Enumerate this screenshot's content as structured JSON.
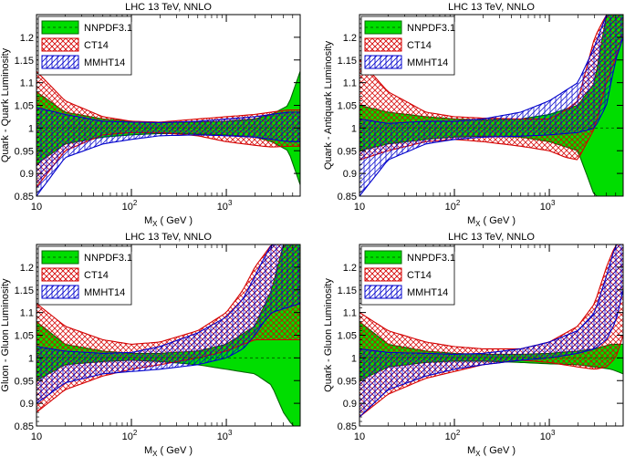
{
  "chart_data": [
    {
      "type": "area",
      "title": "LHC 13 TeV, NNLO",
      "ylabel": "Quark - Quark Luminosity",
      "xlabel_main": "M",
      "xlabel_sub": "X",
      "xlabel_unit": " ( GeV )",
      "xscale": "log",
      "xlim": [
        10,
        6000
      ],
      "ylim": [
        0.85,
        1.25
      ],
      "yticks": [
        0.85,
        0.9,
        0.95,
        1,
        1.05,
        1.1,
        1.15,
        1.2
      ],
      "ytick_labels": [
        "0.85",
        "0.9",
        "0.95",
        "1",
        "1.05",
        "1.1",
        "1.15",
        "1.2"
      ],
      "xticks": [
        {
          "base": "10",
          "exp": ""
        },
        {
          "base": "10",
          "exp": "2"
        },
        {
          "base": "10",
          "exp": "3"
        }
      ],
      "legend": [
        "NNPDF3.1",
        "CT14",
        "MMHT14"
      ],
      "legend_position": "top-left",
      "series": [
        {
          "name": "NNPDF3.1",
          "x": [
            10,
            20,
            50,
            100,
            200,
            500,
            1000,
            2000,
            3000,
            4500,
            6000
          ],
          "central": [
            1,
            1,
            1,
            1,
            1,
            1,
            1,
            1,
            1,
            1,
            1
          ],
          "upper": [
            1.08,
            1.035,
            1.02,
            1.015,
            1.012,
            1.013,
            1.015,
            1.02,
            1.03,
            1.05,
            1.125
          ],
          "lower": [
            0.92,
            0.965,
            0.98,
            0.985,
            0.988,
            0.987,
            0.985,
            0.98,
            0.97,
            0.95,
            0.875
          ]
        },
        {
          "name": "CT14",
          "x": [
            10,
            20,
            50,
            100,
            200,
            500,
            1000,
            2000,
            3000,
            4500,
            6000
          ],
          "upper": [
            1.125,
            1.06,
            1.025,
            1.015,
            1.013,
            1.02,
            1.025,
            1.03,
            1.035,
            1.04,
            1.04
          ],
          "lower": [
            0.87,
            0.95,
            0.985,
            0.99,
            0.99,
            0.983,
            0.97,
            0.962,
            0.958,
            0.96,
            0.96
          ]
        },
        {
          "name": "MMHT14",
          "x": [
            10,
            20,
            50,
            100,
            200,
            500,
            1000,
            2000,
            3000,
            4500,
            6000
          ],
          "upper": [
            1.045,
            1.03,
            1.015,
            1.013,
            1.012,
            1.015,
            1.02,
            1.025,
            1.03,
            1.035,
            1.035
          ],
          "lower": [
            0.85,
            0.935,
            0.965,
            0.975,
            0.983,
            0.985,
            0.983,
            0.98,
            0.975,
            0.97,
            0.97
          ]
        }
      ]
    },
    {
      "type": "area",
      "title": "LHC 13 TeV, NNLO",
      "ylabel": "Quark - Antiquark Luminosity",
      "xlabel_main": "M",
      "xlabel_sub": "X",
      "xlabel_unit": " ( GeV )",
      "xscale": "log",
      "xlim": [
        10,
        6000
      ],
      "ylim": [
        0.85,
        1.25
      ],
      "yticks": [
        0.85,
        0.9,
        0.95,
        1,
        1.05,
        1.1,
        1.15,
        1.2
      ],
      "ytick_labels": [
        "0.85",
        "0.9",
        "0.95",
        "1",
        "1.05",
        "1.1",
        "1.15",
        "1.2"
      ],
      "xticks": [
        {
          "base": "10",
          "exp": ""
        },
        {
          "base": "10",
          "exp": "2"
        },
        {
          "base": "10",
          "exp": "3"
        }
      ],
      "legend": [
        "NNPDF3.1",
        "CT14",
        "MMHT14"
      ],
      "legend_position": "top-left",
      "series": [
        {
          "name": "NNPDF3.1",
          "x": [
            10,
            20,
            50,
            100,
            200,
            500,
            1000,
            2000,
            3000,
            4000,
            5000,
            6000
          ],
          "central": [
            1,
            1,
            1,
            1,
            1,
            1,
            1,
            1,
            1,
            1,
            1,
            1
          ],
          "upper": [
            1.05,
            1.035,
            1.025,
            1.02,
            1.018,
            1.02,
            1.03,
            1.05,
            1.1,
            1.25,
            1.25,
            1.25
          ],
          "lower": [
            0.95,
            0.965,
            0.975,
            0.98,
            0.982,
            0.98,
            0.97,
            0.95,
            0.85,
            0.85,
            0.85,
            0.85
          ]
        },
        {
          "name": "CT14",
          "x": [
            10,
            20,
            50,
            100,
            200,
            500,
            1000,
            1500,
            2000,
            3000,
            4000,
            6000
          ],
          "upper": [
            1.15,
            1.08,
            1.035,
            1.025,
            1.022,
            1.02,
            1.02,
            1.04,
            1.06,
            1.2,
            1.25,
            1.25
          ],
          "lower": [
            0.93,
            0.95,
            0.97,
            0.975,
            0.97,
            0.96,
            0.95,
            0.935,
            0.93,
            1.0,
            1.1,
            1.2
          ]
        },
        {
          "name": "MMHT14",
          "x": [
            10,
            20,
            50,
            100,
            200,
            500,
            1000,
            2000,
            3000,
            4000,
            5000,
            6000
          ],
          "upper": [
            1.02,
            1.01,
            1.015,
            1.015,
            1.02,
            1.035,
            1.06,
            1.1,
            1.18,
            1.25,
            1.25,
            1.25
          ],
          "lower": [
            0.85,
            0.93,
            0.965,
            0.975,
            0.98,
            0.982,
            0.985,
            0.99,
            1.0,
            1.05,
            1.15,
            1.2
          ]
        }
      ]
    },
    {
      "type": "area",
      "title": "LHC 13 TeV, NNLO",
      "ylabel": "Gluon - Gluon Luminosity",
      "xlabel_main": "M",
      "xlabel_sub": "X",
      "xlabel_unit": " ( GeV )",
      "xscale": "log",
      "xlim": [
        10,
        6000
      ],
      "ylim": [
        0.85,
        1.25
      ],
      "yticks": [
        0.85,
        0.9,
        0.95,
        1,
        1.05,
        1.1,
        1.15,
        1.2
      ],
      "ytick_labels": [
        "0.85",
        "0.9",
        "0.95",
        "1",
        "1.05",
        "1.1",
        "1.15",
        "1.2"
      ],
      "xticks": [
        {
          "base": "10",
          "exp": ""
        },
        {
          "base": "10",
          "exp": "2"
        },
        {
          "base": "10",
          "exp": "3"
        }
      ],
      "legend": [
        "NNPDF3.1",
        "CT14",
        "MMHT14"
      ],
      "legend_position": "top-left",
      "series": [
        {
          "name": "NNPDF3.1",
          "x": [
            10,
            20,
            50,
            100,
            200,
            500,
            1000,
            2000,
            3000,
            4000,
            5000,
            6000
          ],
          "central": [
            1,
            1,
            1,
            1,
            1,
            1,
            1,
            1,
            1,
            1,
            1,
            1
          ],
          "upper": [
            1.08,
            1.03,
            1.015,
            1.01,
            1.01,
            1.015,
            1.03,
            1.07,
            1.15,
            1.25,
            1.25,
            1.25
          ],
          "lower": [
            0.95,
            0.985,
            0.992,
            0.995,
            0.992,
            0.985,
            0.975,
            0.965,
            0.94,
            0.88,
            0.85,
            0.85
          ]
        },
        {
          "name": "CT14",
          "x": [
            10,
            20,
            50,
            100,
            200,
            500,
            1000,
            1500,
            2000,
            3000,
            4000,
            6000
          ],
          "upper": [
            1.12,
            1.07,
            1.04,
            1.03,
            1.035,
            1.06,
            1.1,
            1.15,
            1.2,
            1.25,
            1.25,
            1.25
          ],
          "lower": [
            0.88,
            0.93,
            0.96,
            0.975,
            0.985,
            1.0,
            1.015,
            1.03,
            1.04,
            1.04,
            1.04,
            1.04
          ]
        },
        {
          "name": "MMHT14",
          "x": [
            10,
            20,
            50,
            100,
            200,
            500,
            1000,
            1500,
            2000,
            2500,
            3000,
            6000
          ],
          "upper": [
            1.025,
            1.015,
            1.01,
            1.012,
            1.025,
            1.055,
            1.09,
            1.13,
            1.18,
            1.22,
            1.25,
            1.25
          ],
          "lower": [
            0.9,
            0.945,
            0.965,
            0.97,
            0.975,
            0.985,
            1.0,
            1.02,
            1.05,
            1.08,
            1.1,
            1.12
          ]
        }
      ]
    },
    {
      "type": "area",
      "title": "LHC 13 TeV, NNLO",
      "ylabel": "Quark - Gluon Luminosity",
      "xlabel_main": "M",
      "xlabel_sub": "X",
      "xlabel_unit": " ( GeV )",
      "xscale": "log",
      "xlim": [
        10,
        6000
      ],
      "ylim": [
        0.85,
        1.25
      ],
      "yticks": [
        0.85,
        0.9,
        0.95,
        1,
        1.05,
        1.1,
        1.15,
        1.2
      ],
      "ytick_labels": [
        "0.85",
        "0.9",
        "0.95",
        "1",
        "1.05",
        "1.1",
        "1.15",
        "1.2"
      ],
      "xticks": [
        {
          "base": "10",
          "exp": ""
        },
        {
          "base": "10",
          "exp": "2"
        },
        {
          "base": "10",
          "exp": "3"
        }
      ],
      "legend": [
        "NNPDF3.1",
        "CT14",
        "MMHT14"
      ],
      "legend_position": "top-left",
      "series": [
        {
          "name": "NNPDF3.1",
          "x": [
            10,
            20,
            50,
            100,
            200,
            500,
            1000,
            2000,
            3000,
            4500,
            6000
          ],
          "central": [
            1,
            1,
            1,
            1,
            1,
            1,
            1,
            1,
            1,
            1,
            1
          ],
          "upper": [
            1.08,
            1.03,
            1.015,
            1.01,
            1.008,
            1.008,
            1.01,
            1.015,
            1.02,
            1.03,
            1.03
          ],
          "lower": [
            0.95,
            0.98,
            0.99,
            0.993,
            0.993,
            0.99,
            0.987,
            0.985,
            0.98,
            0.975,
            0.965
          ]
        },
        {
          "name": "CT14",
          "x": [
            10,
            20,
            50,
            100,
            200,
            500,
            1000,
            2000,
            3000,
            4000,
            5000,
            6000
          ],
          "upper": [
            1.1,
            1.06,
            1.035,
            1.025,
            1.02,
            1.02,
            1.035,
            1.07,
            1.12,
            1.2,
            1.25,
            1.25
          ],
          "lower": [
            0.87,
            0.92,
            0.955,
            0.97,
            0.985,
            0.995,
            0.99,
            0.98,
            0.975,
            0.98,
            1.0,
            1.05
          ]
        },
        {
          "name": "MMHT14",
          "x": [
            10,
            20,
            50,
            100,
            200,
            500,
            1000,
            2000,
            3000,
            4000,
            5000,
            6000
          ],
          "upper": [
            1.02,
            1.012,
            1.01,
            1.008,
            1.01,
            1.02,
            1.035,
            1.06,
            1.1,
            1.18,
            1.25,
            1.25
          ],
          "lower": [
            0.87,
            0.93,
            0.96,
            0.975,
            0.985,
            0.995,
            1.0,
            1.01,
            1.02,
            1.04,
            1.08,
            1.15
          ]
        }
      ]
    }
  ],
  "style": {
    "nnpdf_fill": "#00dd00",
    "nnpdf_line": "#006600",
    "ct14_line": "#d40000",
    "mmht_line": "#0000cc",
    "frame": "#000000"
  }
}
